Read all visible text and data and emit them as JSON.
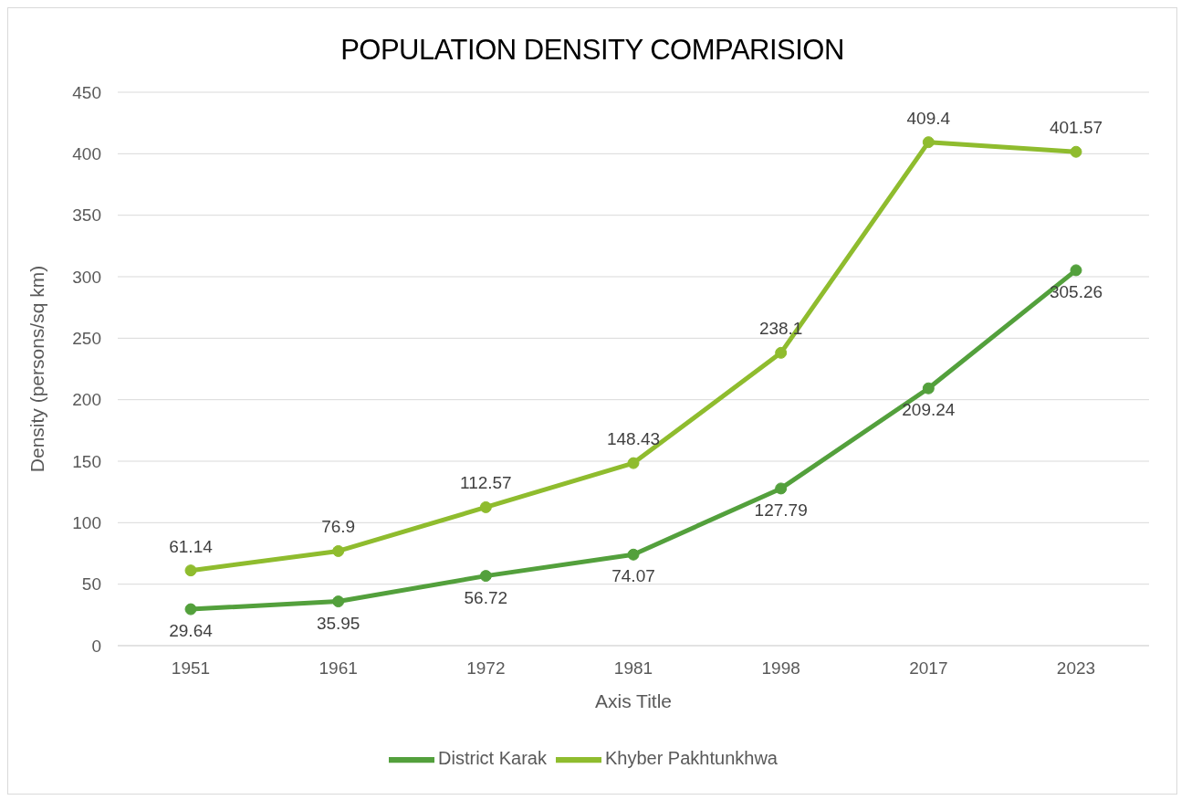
{
  "chart_data": {
    "type": "line",
    "title": "POPULATION DENSITY COMPARISION",
    "xlabel": "Axis Title",
    "ylabel": "Density (persons/sq km)",
    "categories": [
      "1951",
      "1961",
      "1972",
      "1981",
      "1998",
      "2017",
      "2023"
    ],
    "series": [
      {
        "name": "District Karak",
        "color": "#53a03c",
        "values": [
          29.64,
          35.95,
          56.72,
          74.07,
          127.79,
          209.24,
          305.26
        ]
      },
      {
        "name": "Khyber Pakhtunkhwa",
        "color": "#8fbc2e",
        "values": [
          61.14,
          76.9,
          112.57,
          148.43,
          238.1,
          409.4,
          401.57
        ]
      }
    ],
    "ylim": [
      0,
      450
    ],
    "yticks": [
      0,
      50,
      100,
      150,
      200,
      250,
      300,
      350,
      400,
      450
    ],
    "grid": "y",
    "legend": "bottom",
    "marker": "circle",
    "line_style": "solid",
    "data_labels": true
  }
}
